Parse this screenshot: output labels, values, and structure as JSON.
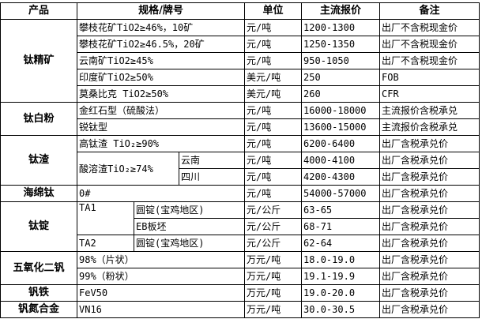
{
  "headers": [
    "产品",
    "规格/牌号",
    "单位",
    "主流报价",
    "备注"
  ],
  "groups": [
    {
      "product": "钛精矿",
      "rows": [
        {
          "spec": "攀枝花矿TiO2≥46%，10矿",
          "unit": "元/吨",
          "price": "1200-1300",
          "note": "出厂不含税现金价"
        },
        {
          "spec": "攀枝花矿TiO2≥46.5%，20矿",
          "unit": "元/吨",
          "price": "1250-1350",
          "note": "出厂不含税现金价"
        },
        {
          "spec": "云南矿TiO2≥45%",
          "unit": "元/吨",
          "price": "950-1050",
          "note": "出厂不含税现金价"
        },
        {
          "spec": "印度矿TiO2≥50%",
          "unit": "美元/吨",
          "price": "250",
          "note": "FOB"
        },
        {
          "spec": "莫桑比克 TiO2≥50%",
          "unit": "美元/吨",
          "price": "260",
          "note": "CFR"
        }
      ]
    },
    {
      "product": "钛白粉",
      "rows": [
        {
          "spec": "金红石型（硫酸法）",
          "unit": "元/吨",
          "price": "16000-18000",
          "note": "主流报价含税承兑"
        },
        {
          "spec": "锐钛型",
          "unit": "元/吨",
          "price": "13600-15000",
          "note": "主流报价含税承兑"
        }
      ]
    },
    {
      "product": "钛渣",
      "rows": [
        {
          "spec": "高钛渣 TiO₂≥90%",
          "unit": "元/吨",
          "price": "6200-6400",
          "note": "出厂含税承兑价"
        },
        {
          "spec": "酸溶渣TiO₂≥74%",
          "sub": "云南",
          "unit": "元/吨",
          "price": "4000-4100",
          "note": "出厂含税承兑价"
        },
        {
          "sub": "四川",
          "unit": "元/吨",
          "price": "4200-4300",
          "note": "出厂含税承兑价"
        }
      ]
    },
    {
      "product": "海绵钛",
      "rows": [
        {
          "spec": "0#",
          "unit": "元/吨",
          "price": "54000-57000",
          "note": "出厂含税承兑价"
        }
      ]
    },
    {
      "product": "钛锭",
      "rows": [
        {
          "grade": "TA1",
          "spec": "圆锭(宝鸡地区)",
          "unit": "元/公斤",
          "price": "63-65",
          "note": "出厂含税承兑价"
        },
        {
          "spec": "EB板坯",
          "unit": "元/公斤",
          "price": "68-71",
          "note": "出厂含税承兑价"
        },
        {
          "grade": "TA2",
          "spec": "圆锭(宝鸡地区)",
          "unit": "元/公斤",
          "price": "62-64",
          "note": "出厂含税承兑价"
        }
      ]
    },
    {
      "product": "五氧化二钒",
      "rows": [
        {
          "spec": "98%（片状）",
          "unit": "万元/吨",
          "price": "18.0-19.0",
          "note": "出厂含税承兑价"
        },
        {
          "spec": "99%（粉状）",
          "unit": "万元/吨",
          "price": "19.1-19.9",
          "note": "出厂含税承兑价"
        }
      ]
    },
    {
      "product": "钒铁",
      "rows": [
        {
          "spec": "FeV50",
          "unit": "万元/吨",
          "price": "19.0-20.0",
          "note": "出厂含税承兑价"
        }
      ]
    },
    {
      "product": "钒氮合金",
      "rows": [
        {
          "spec": "VN16",
          "unit": "万元/吨",
          "price": "30.0-30.5",
          "note": "出厂含税承兑价"
        }
      ]
    }
  ]
}
